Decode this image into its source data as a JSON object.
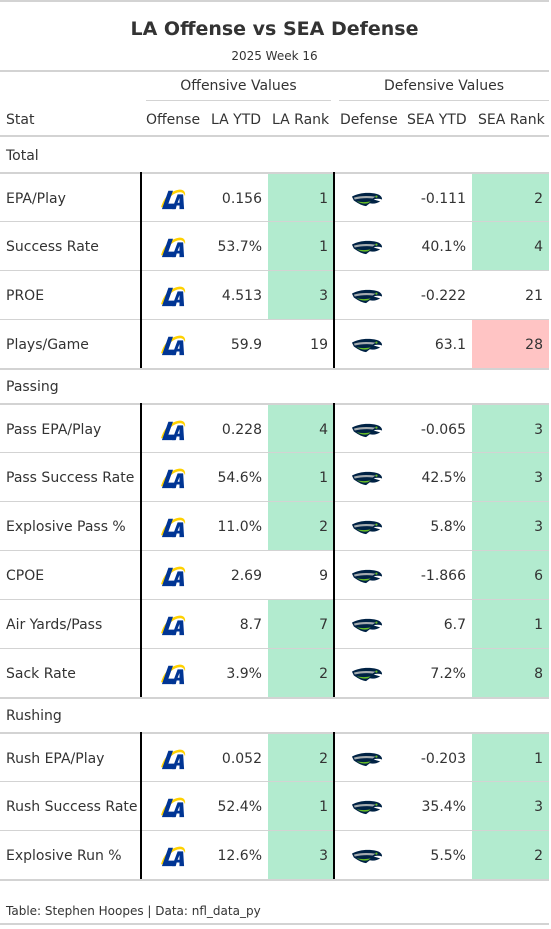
{
  "title": "LA Offense vs SEA Defense",
  "subtitle": "2025 Week 16",
  "spanners": {
    "offense": "Offensive Values",
    "defense": "Defensive Values"
  },
  "columns": {
    "stat": "Stat",
    "offense": "Offense",
    "la_ytd": "LA YTD",
    "la_rank": "LA Rank",
    "defense": "Defense",
    "sea_ytd": "SEA YTD",
    "sea_rank": "SEA Rank"
  },
  "colors": {
    "good": "#b2ebcf",
    "bad": "#ffc4c4",
    "rams_blue": "#003594",
    "rams_gold": "#FFD100",
    "seahawks_navy": "#002244",
    "seahawks_green": "#69BE28"
  },
  "icons": {
    "offense_logo": "rams-logo-icon",
    "defense_logo": "seahawks-logo-icon"
  },
  "groups": [
    {
      "name": "Total",
      "rows": [
        {
          "stat": "EPA/Play",
          "la_ytd": "0.156",
          "la_rank": "1",
          "la_highlight": "good",
          "sea_ytd": "-0.111",
          "sea_rank": "2",
          "sea_highlight": "good"
        },
        {
          "stat": "Success Rate",
          "la_ytd": "53.7%",
          "la_rank": "1",
          "la_highlight": "good",
          "sea_ytd": "40.1%",
          "sea_rank": "4",
          "sea_highlight": "good"
        },
        {
          "stat": "PROE",
          "la_ytd": "4.513",
          "la_rank": "3",
          "la_highlight": "good",
          "sea_ytd": "-0.222",
          "sea_rank": "21",
          "sea_highlight": ""
        },
        {
          "stat": "Plays/Game",
          "la_ytd": "59.9",
          "la_rank": "19",
          "la_highlight": "",
          "sea_ytd": "63.1",
          "sea_rank": "28",
          "sea_highlight": "bad"
        }
      ]
    },
    {
      "name": "Passing",
      "rows": [
        {
          "stat": "Pass EPA/Play",
          "la_ytd": "0.228",
          "la_rank": "4",
          "la_highlight": "good",
          "sea_ytd": "-0.065",
          "sea_rank": "3",
          "sea_highlight": "good"
        },
        {
          "stat": "Pass Success Rate",
          "la_ytd": "54.6%",
          "la_rank": "1",
          "la_highlight": "good",
          "sea_ytd": "42.5%",
          "sea_rank": "3",
          "sea_highlight": "good"
        },
        {
          "stat": "Explosive Pass %",
          "la_ytd": "11.0%",
          "la_rank": "2",
          "la_highlight": "good",
          "sea_ytd": "5.8%",
          "sea_rank": "3",
          "sea_highlight": "good"
        },
        {
          "stat": "CPOE",
          "la_ytd": "2.69",
          "la_rank": "9",
          "la_highlight": "",
          "sea_ytd": "-1.866",
          "sea_rank": "6",
          "sea_highlight": "good"
        },
        {
          "stat": "Air Yards/Pass",
          "la_ytd": "8.7",
          "la_rank": "7",
          "la_highlight": "good",
          "sea_ytd": "6.7",
          "sea_rank": "1",
          "sea_highlight": "good"
        },
        {
          "stat": "Sack Rate",
          "la_ytd": "3.9%",
          "la_rank": "2",
          "la_highlight": "good",
          "sea_ytd": "7.2%",
          "sea_rank": "8",
          "sea_highlight": "good"
        }
      ]
    },
    {
      "name": "Rushing",
      "rows": [
        {
          "stat": "Rush EPA/Play",
          "la_ytd": "0.052",
          "la_rank": "2",
          "la_highlight": "good",
          "sea_ytd": "-0.203",
          "sea_rank": "1",
          "sea_highlight": "good"
        },
        {
          "stat": "Rush Success Rate",
          "la_ytd": "52.4%",
          "la_rank": "1",
          "la_highlight": "good",
          "sea_ytd": "35.4%",
          "sea_rank": "3",
          "sea_highlight": "good"
        },
        {
          "stat": "Explosive Run %",
          "la_ytd": "12.6%",
          "la_rank": "3",
          "la_highlight": "good",
          "sea_ytd": "5.5%",
          "sea_rank": "2",
          "sea_highlight": "good"
        }
      ]
    }
  ],
  "footer": "Table: Stephen Hoopes | Data: nfl_data_py"
}
